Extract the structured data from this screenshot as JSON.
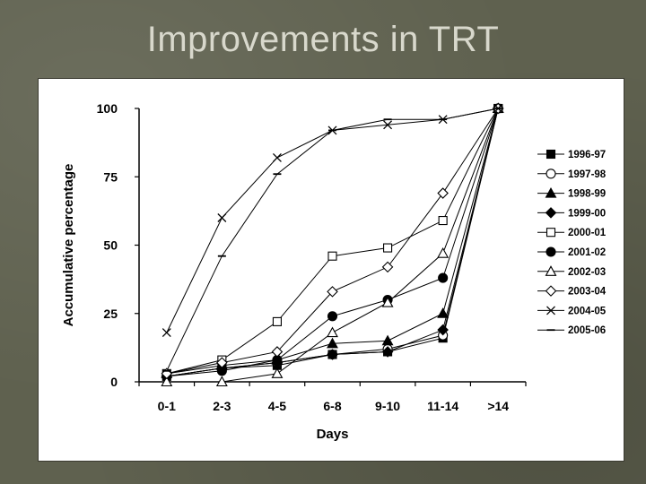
{
  "slide": {
    "title": "Improvements in TRT"
  },
  "chart_data": {
    "type": "line",
    "title": "",
    "xlabel": "Days",
    "ylabel": "Accumulative percentage",
    "categories": [
      "0-1",
      "2-3",
      "4-5",
      "6-8",
      "9-10",
      "11-14",
      ">14"
    ],
    "y_ticks": [
      "0",
      "25",
      "50",
      "75",
      "100"
    ],
    "ylim": [
      0,
      100
    ],
    "grid": false,
    "legend_position": "right",
    "series": [
      {
        "name": "1996-97",
        "marker": "square-filled",
        "values": [
          2,
          5,
          6,
          10,
          11,
          16,
          100
        ]
      },
      {
        "name": "1997-98",
        "marker": "circle-open",
        "values": [
          2,
          5,
          7,
          10,
          12,
          17,
          100
        ]
      },
      {
        "name": "1998-99",
        "marker": "triangle-filled",
        "values": [
          3,
          6,
          8,
          14,
          15,
          25,
          100
        ]
      },
      {
        "name": "1999-00",
        "marker": "diamond-filled",
        "values": [
          2,
          5,
          7,
          10,
          11,
          19,
          100
        ]
      },
      {
        "name": "2000-01",
        "marker": "square-open",
        "values": [
          3,
          8,
          22,
          46,
          49,
          59,
          100
        ]
      },
      {
        "name": "2001-02",
        "marker": "circle-filled",
        "values": [
          2,
          4,
          8,
          24,
          30,
          38,
          100
        ]
      },
      {
        "name": "2002-03",
        "marker": "triangle-open",
        "values": [
          0,
          0,
          3,
          18,
          29,
          47,
          100
        ]
      },
      {
        "name": "2003-04",
        "marker": "diamond-open",
        "values": [
          3,
          7,
          11,
          33,
          42,
          69,
          100
        ]
      },
      {
        "name": "2004-05",
        "marker": "x",
        "values": [
          18,
          60,
          82,
          92,
          94,
          96,
          100
        ]
      },
      {
        "name": "2005-06",
        "marker": "dash",
        "values": [
          4,
          46,
          76,
          92,
          96,
          96,
          100
        ]
      }
    ]
  }
}
